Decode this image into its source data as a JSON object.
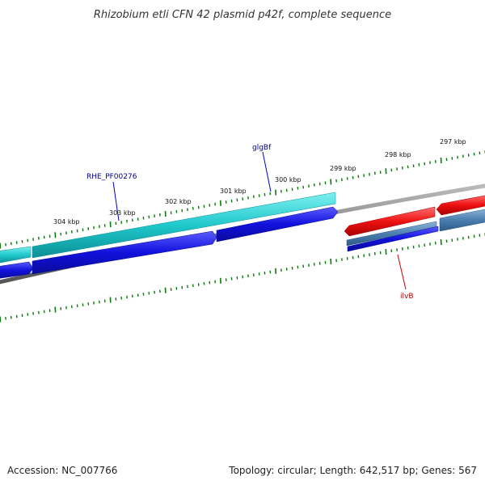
{
  "title": "Rhizobium etli CFN 42 plasmid p42f, complete sequence",
  "footer": {
    "accession": "Accession: NC_007766",
    "info": "Topology: circular; Length: 642,517 bp; Genes: 567"
  },
  "scale_labels": [
    "304 kbp",
    "303 kbp",
    "302 kbp",
    "301 kbp",
    "300 kbp",
    "299 kbp",
    "298 kbp",
    "297 kbp"
  ],
  "gene_labels": [
    {
      "text": "RHE_PF00276",
      "color": "#00008b"
    },
    {
      "text": "glgBf",
      "color": "#00008b"
    },
    {
      "text": "ilvB",
      "color": "#b00000"
    }
  ],
  "colors": {
    "tick": "#0a7a0a",
    "backbone": "#808080",
    "cyan": "#1fc8cc",
    "blue": "#1111dd",
    "red": "#ee1111",
    "steel": "#4a7fb0"
  }
}
